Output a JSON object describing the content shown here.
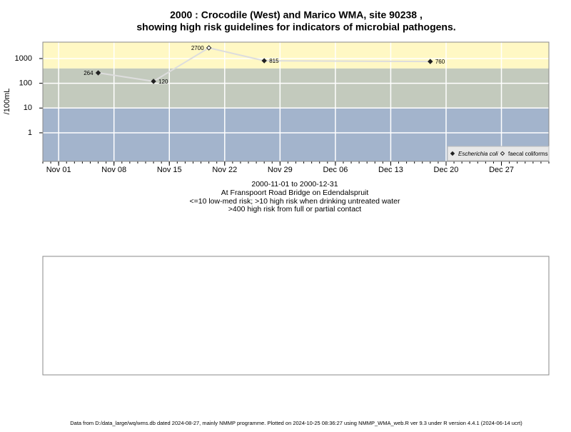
{
  "chart_data": {
    "type": "scatter",
    "title": "2000 : Crocodile (West) and Marico WMA, site 90238 ,",
    "title2": "showing high risk guidelines for indicators of microbial pathogens.",
    "subtitle": [
      "2000-11-01 to 2000-12-31",
      "At Franspoort Road Bridge on Edendalspruit",
      "<=10 low-med risk; >10 high risk when drinking untreated water",
      ">400 high risk from full or partial contact"
    ],
    "y_label": "/100mL",
    "x": [
      "2000-11-06",
      "2000-11-13",
      "2000-11-20",
      "2000-11-27",
      "2000-12-18"
    ],
    "series": [
      {
        "name": "Escherichia coli",
        "color": "#222222",
        "values": [
          264,
          120,
          null,
          815,
          760
        ]
      },
      {
        "name": "faecal coliforms",
        "color": "#222222",
        "values": [
          null,
          null,
          2700,
          null,
          null
        ]
      }
    ],
    "line_color": "#dddddd",
    "thresholds": [
      10,
      400
    ],
    "band_colors": [
      "#a3b4cc",
      "#c3cabd",
      "#fff8c4"
    ],
    "ylog": true,
    "ylim": [
      0.07,
      4600
    ],
    "yticks": [
      1,
      10,
      100,
      1000
    ],
    "xlim": [
      "2000-10-30",
      "2001-01-02"
    ],
    "xticks": [
      {
        "value": "2000-11-01",
        "label": "Nov 01"
      },
      {
        "value": "2000-11-08",
        "label": "Nov 08"
      },
      {
        "value": "2000-11-15",
        "label": "Nov 15"
      },
      {
        "value": "2000-11-22",
        "label": "Nov 22"
      },
      {
        "value": "2000-11-29",
        "label": "Nov 29"
      },
      {
        "value": "2000-12-06",
        "label": "Dec 06"
      },
      {
        "value": "2000-12-13",
        "label": "Dec 13"
      },
      {
        "value": "2000-12-20",
        "label": "Dec 20"
      },
      {
        "value": "2000-12-27",
        "label": "Dec 27"
      }
    ],
    "grid": true,
    "legend": "bottom-right",
    "footer": "Data from D:/data_large/wq/wms.db dated 2024-08-27, mainly NMMP programme. Plotted on 2024-10-25 08:36:27 using NMMP_WMA_web.R ver 9.3 under R version 4.4.1 (2024-06-14 ucrt)"
  }
}
